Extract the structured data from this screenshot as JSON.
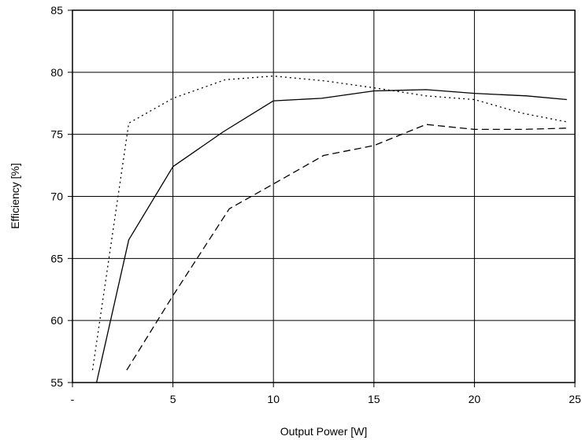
{
  "chart_data": {
    "type": "line",
    "title": "",
    "xlabel": "Output Power [W]",
    "ylabel": "Efficiency [%]",
    "xlim": [
      0,
      25
    ],
    "ylim": [
      55,
      85
    ],
    "grid": true,
    "x_ticks": [
      "-",
      "5",
      "10",
      "15",
      "20",
      "25"
    ],
    "y_ticks": [
      "55",
      "60",
      "65",
      "70",
      "75",
      "80",
      "85"
    ],
    "series": [
      {
        "style": "solid",
        "x": [
          1.2,
          2.8,
          5.0,
          7.5,
          10.0,
          12.4,
          15.0,
          17.6,
          20.0,
          22.6,
          24.6
        ],
        "y": [
          55.0,
          66.5,
          72.4,
          75.2,
          77.7,
          77.9,
          78.5,
          78.6,
          78.3,
          78.1,
          77.8
        ]
      },
      {
        "style": "dotted",
        "x": [
          1.0,
          2.8,
          5.0,
          7.6,
          10.0,
          12.6,
          15.2,
          17.6,
          20.0,
          22.4,
          24.6
        ],
        "y": [
          56.0,
          75.9,
          77.9,
          79.4,
          79.7,
          79.3,
          78.7,
          78.1,
          77.8,
          76.7,
          76.0
        ]
      },
      {
        "style": "dashed",
        "x": [
          2.7,
          5.0,
          7.8,
          10.0,
          12.5,
          15.0,
          17.6,
          20.0,
          22.4,
          24.6
        ],
        "y": [
          56.0,
          62.0,
          69.0,
          71.0,
          73.3,
          74.1,
          75.8,
          75.4,
          75.4,
          75.5
        ]
      }
    ]
  }
}
